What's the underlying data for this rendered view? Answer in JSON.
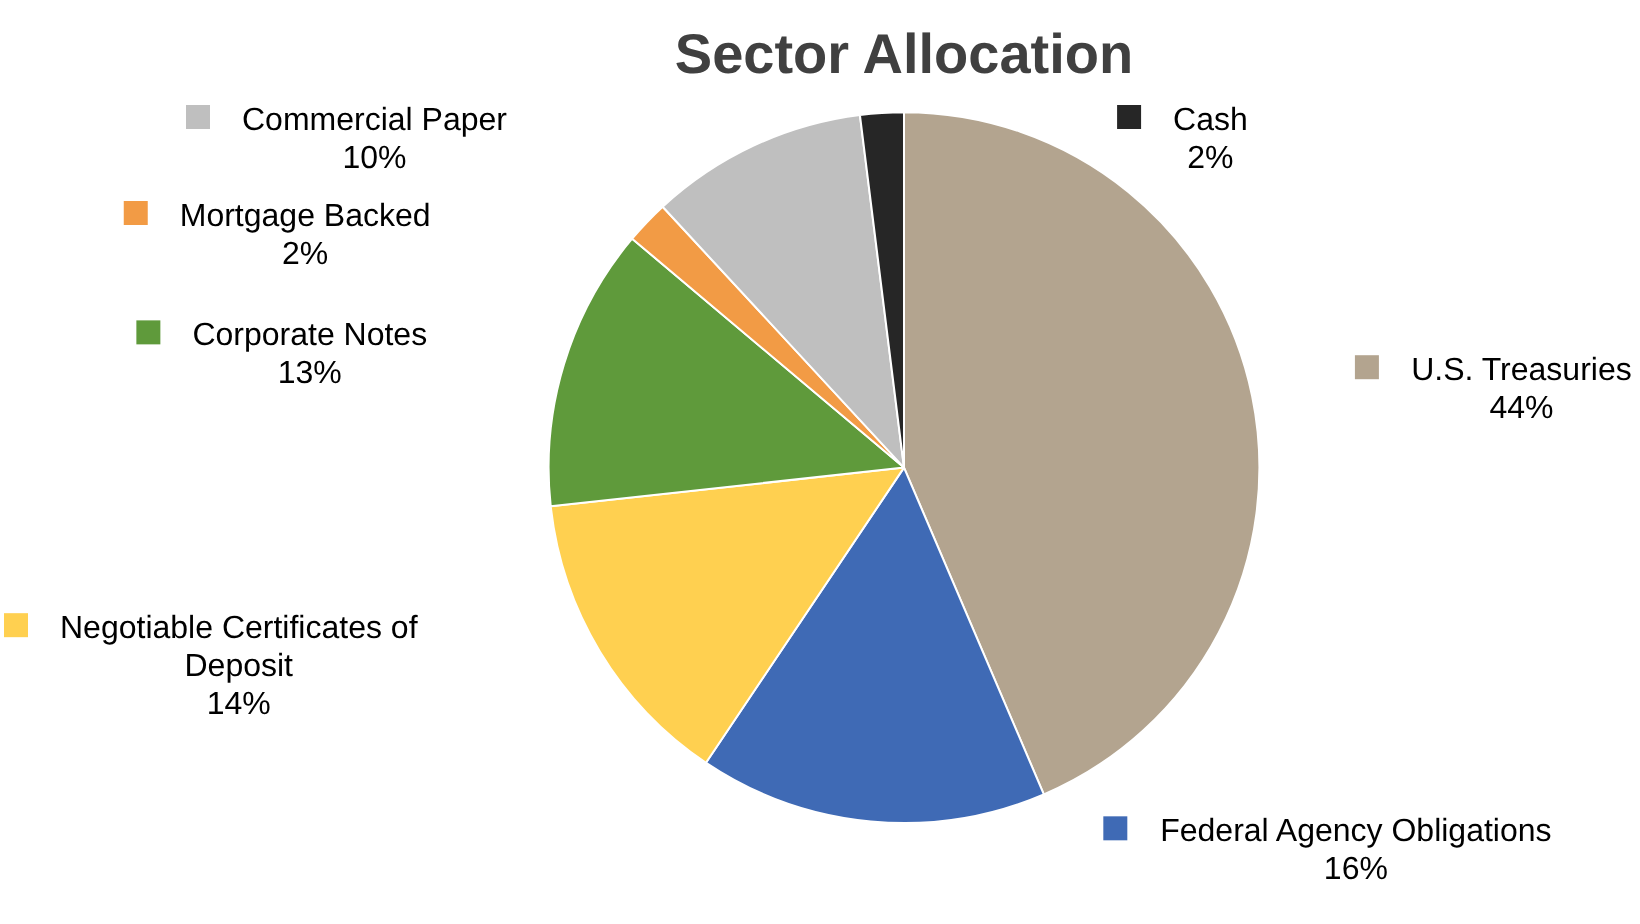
{
  "chart_data": {
    "type": "pie",
    "title": "Sector Allocation",
    "categories": [
      "U.S. Treasuries",
      "Federal Agency Obligations",
      "Negotiable Certificates of Deposit",
      "Corporate Notes",
      "Mortgage Backed",
      "Commercial Paper",
      "Cash"
    ],
    "values": [
      44,
      16,
      14,
      13,
      2,
      10,
      2
    ],
    "value_labels": [
      "44%",
      "16%",
      "14%",
      "13%",
      "2%",
      "10%",
      "2%"
    ],
    "colors": [
      "#b3a48f",
      "#3f6ab5",
      "#ffd050",
      "#5f9a3b",
      "#f29b45",
      "#bfbfbf",
      "#262626"
    ],
    "legend": "left"
  }
}
